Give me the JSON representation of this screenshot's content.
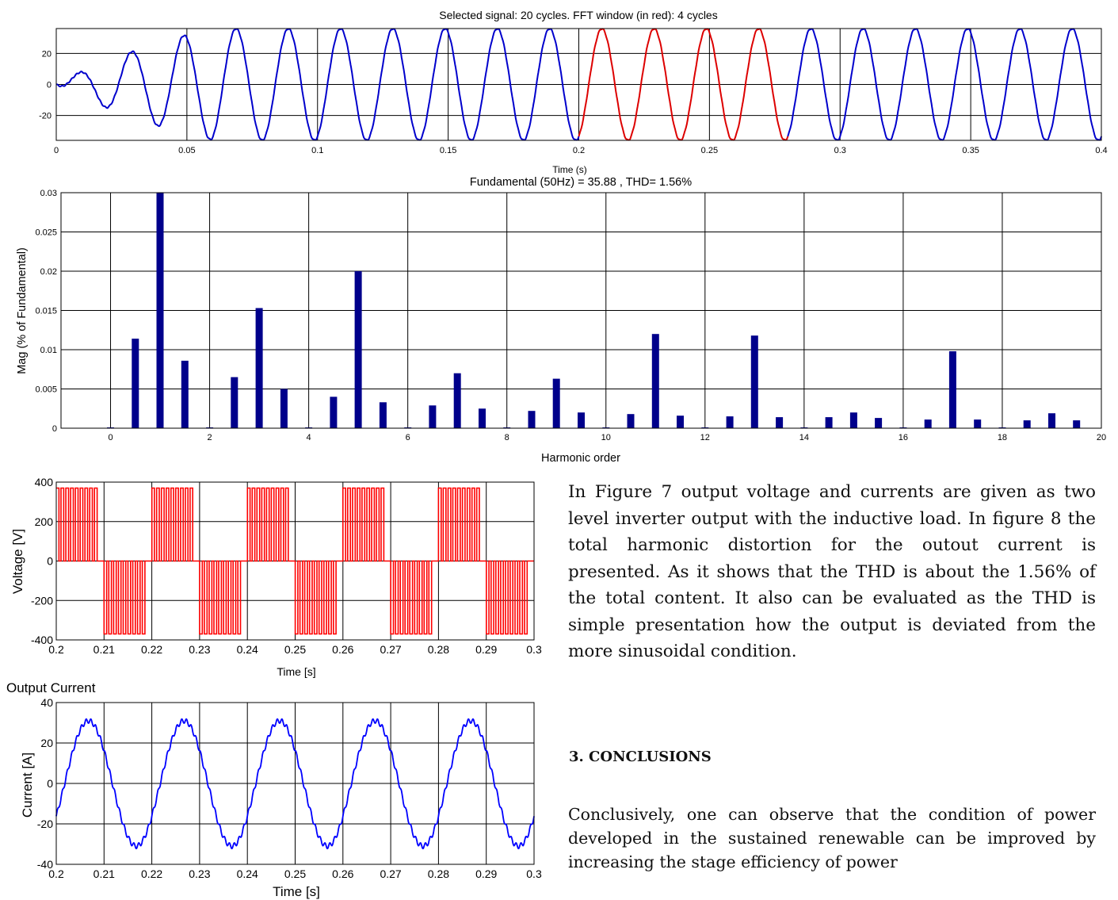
{
  "charts": {
    "signal": {
      "title": "Selected signal: 20 cycles. FFT window (in red): 4 cycles",
      "xlabel": "Time (s)",
      "ylabel": "",
      "xticks": [
        "0",
        "0.05",
        "0.1",
        "0.15",
        "0.2",
        "0.25",
        "0.3",
        "0.35",
        "0.4"
      ],
      "yticks": [
        "20",
        "0",
        "-20"
      ]
    },
    "fft": {
      "title": "Fundamental (50Hz) = 35.88 , THD= 1.56%",
      "xlabel": "Harmonic order",
      "ylabel": "Mag (% of Fundamental)",
      "xticks": [
        "0",
        "2",
        "4",
        "6",
        "8",
        "10",
        "12",
        "14",
        "16",
        "18",
        "20"
      ],
      "yticks": [
        "0.03",
        "0.025",
        "0.02",
        "0.015",
        "0.01",
        "0.005",
        "0"
      ]
    },
    "voltage": {
      "title": "",
      "xlabel": "Time [s]",
      "ylabel": "Voltage [V]",
      "xticks": [
        "0.2",
        "0.21",
        "0.22",
        "0.23",
        "0.24",
        "0.25",
        "0.26",
        "0.27",
        "0.28",
        "0.29",
        "0.3"
      ],
      "yticks": [
        "400",
        "200",
        "0",
        "-200",
        "-400"
      ]
    },
    "current": {
      "title": "Output Current",
      "xlabel": "Time [s]",
      "ylabel": "Current [A]",
      "xticks": [
        "0.2",
        "0.21",
        "0.22",
        "0.23",
        "0.24",
        "0.25",
        "0.26",
        "0.27",
        "0.28",
        "0.29",
        "0.3"
      ],
      "yticks": [
        "40",
        "20",
        "0",
        "-20",
        "-40"
      ]
    }
  },
  "chart_data": [
    {
      "type": "line",
      "title": "Selected signal: 20 cycles. FFT window (in red): 4 cycles",
      "xlabel": "Time (s)",
      "ylabel": "",
      "xlim": [
        0,
        0.4
      ],
      "ylim": [
        -36,
        36
      ],
      "frequency_hz": 50,
      "steady_amplitude": 35.88,
      "startup_envelope": {
        "t": [
          0,
          0.005,
          0.025,
          0.045,
          0.06
        ],
        "amplitude": [
          0,
          5,
          19,
          30,
          35.88
        ]
      },
      "fft_window": [
        0.2,
        0.28
      ],
      "colors": {
        "signal": "#0000cc",
        "fft_window": "#dd0000"
      },
      "grid": true
    },
    {
      "type": "bar",
      "title": "Fundamental (50Hz) = 35.88 , THD= 1.56%",
      "xlabel": "Harmonic order",
      "ylabel": "Mag (% of Fundamental)",
      "xlim": [
        -1,
        20
      ],
      "ylim": [
        0,
        0.03
      ],
      "x": [
        0,
        0.5,
        1,
        1.5,
        2,
        2.5,
        3,
        3.5,
        4,
        4.5,
        5,
        5.5,
        6,
        6.5,
        7,
        7.5,
        8,
        8.5,
        9,
        9.5,
        10,
        10.5,
        11,
        11.5,
        12,
        12.5,
        13,
        13.5,
        14,
        14.5,
        15,
        15.5,
        16,
        16.5,
        17,
        17.5,
        18,
        18.5,
        19,
        19.5
      ],
      "values": [
        0.0001,
        0.0114,
        0.03,
        0.0086,
        0.0001,
        0.0065,
        0.0153,
        0.005,
        0.0001,
        0.004,
        0.02,
        0.0033,
        0.0001,
        0.0029,
        0.007,
        0.0025,
        0.0001,
        0.0022,
        0.0063,
        0.002,
        0.0001,
        0.0018,
        0.012,
        0.0016,
        0.0001,
        0.0015,
        0.0118,
        0.0014,
        0.0001,
        0.0014,
        0.002,
        0.0013,
        0.0001,
        0.0011,
        0.0098,
        0.0011,
        0.0001,
        0.001,
        0.0019,
        0.001
      ],
      "bar_color": "#00008b",
      "grid": true
    },
    {
      "type": "line",
      "title": "",
      "xlabel": "Time [s]",
      "ylabel": "Voltage [V]",
      "xlim": [
        0.2,
        0.3
      ],
      "ylim": [
        -400,
        400
      ],
      "waveform": "two-level PWM",
      "level": 370,
      "frequency_hz": 50,
      "color": "#ff0000",
      "grid": true
    },
    {
      "type": "line",
      "title": "Output Current",
      "xlabel": "Time [s]",
      "ylabel": "Current [A]",
      "xlim": [
        0.2,
        0.3
      ],
      "ylim": [
        -40,
        40
      ],
      "amplitude": 31,
      "frequency_hz": 50,
      "ripple": 1.2,
      "color": "#0000ff",
      "grid": true
    }
  ],
  "text": {
    "para1": "In Figure 7 output voltage and currents are given as two level inverter output with the inductive load. In figure 8 the total harmonic distortion for the outout current is presented. As it shows that the THD is about the 1.56% of the total content. It also can be evaluated as the THD is simple presentation how the output is deviated from the more sinusoidal condition.",
    "heading": "3. CONCLUSIONS",
    "para2": "Conclusively, one can observe that the condition of power developed in the sustained renewable can be improved by increasing the stage efficiency of power"
  }
}
